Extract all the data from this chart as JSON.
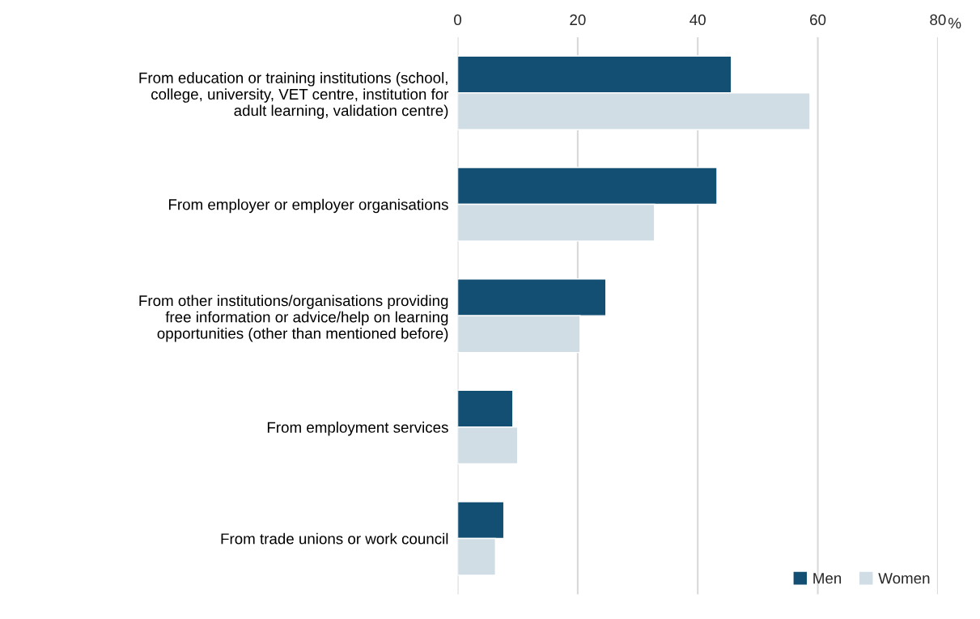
{
  "chart_data": {
    "type": "bar",
    "orientation": "horizontal",
    "xlabel": "%",
    "categories": [
      "From education or training institutions (school,\ncollege, university, VET centre, institution for\nadult learning, validation centre)",
      "From employer or employer organisations",
      "From other institutions/organisations providing\nfree information or advice/help on learning\nopportunities (other than mentioned before)",
      "From employment services",
      "From trade unions or work council"
    ],
    "series": [
      {
        "name": "Men",
        "color": "#124f73",
        "values": [
          45.6,
          43.2,
          24.7,
          9.2,
          7.7
        ]
      },
      {
        "name": "Women",
        "color": "#d0dde5",
        "values": [
          58.7,
          32.8,
          20.4,
          10.0,
          6.3
        ]
      }
    ],
    "xlim": [
      0,
      80
    ],
    "xticks": [
      0,
      20,
      40,
      60,
      80
    ],
    "grid": "x",
    "legend": "bottom right"
  }
}
